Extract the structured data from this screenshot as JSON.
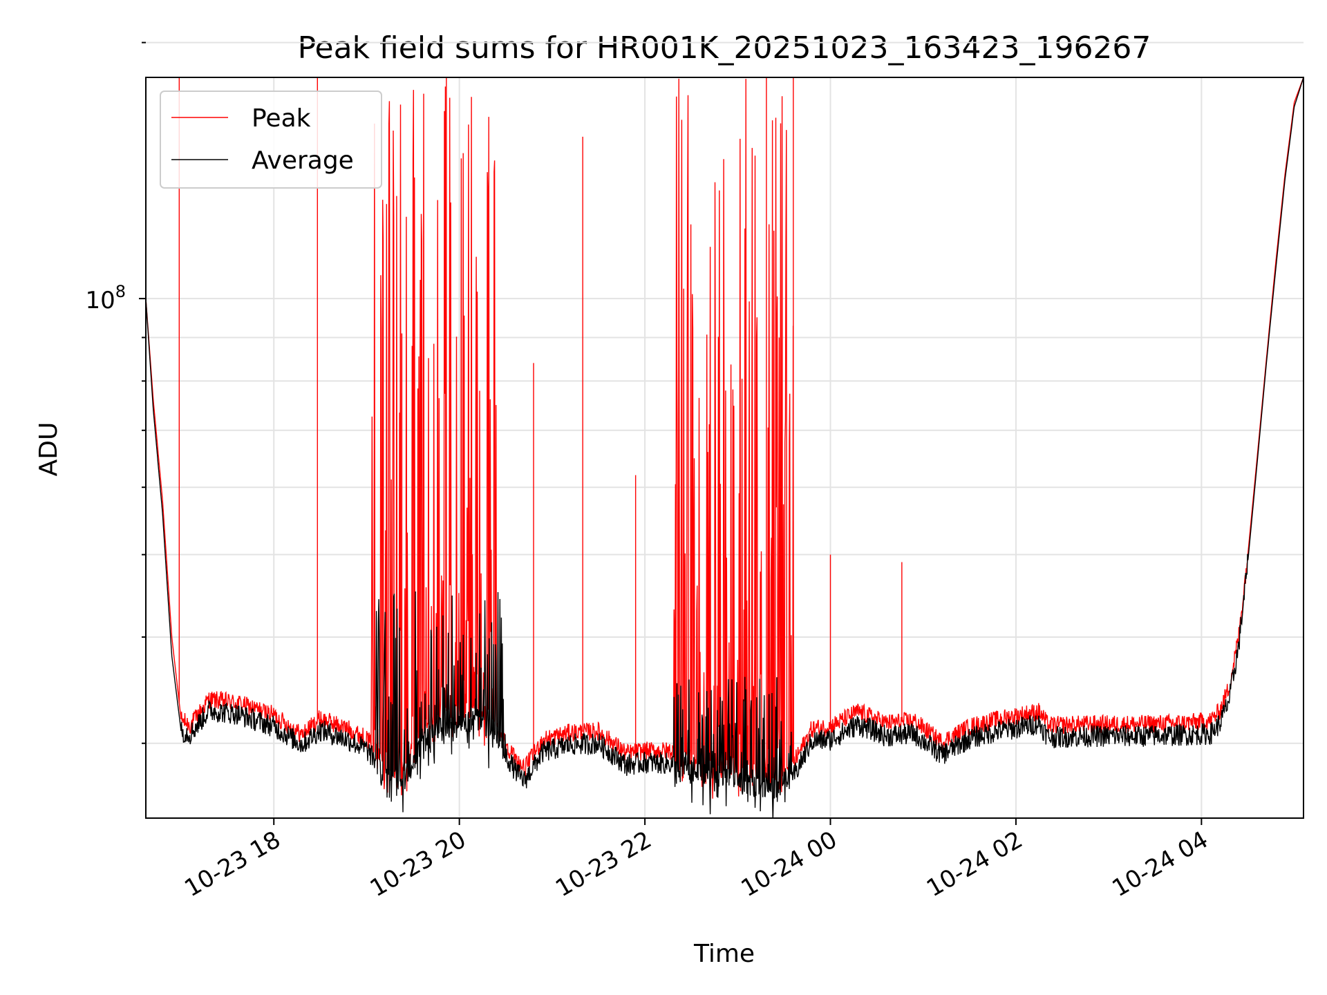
{
  "chart_data": {
    "type": "line",
    "title": "Peak field sums for HR001K_20251023_163423_196267",
    "xlabel": "Time",
    "ylabel": "ADU",
    "yscale": "log",
    "y_major_tick": {
      "value": 100000000,
      "label_base": "10",
      "label_exp": "8"
    },
    "y_minor_ticks": [
      30000000,
      40000000,
      50000000,
      60000000,
      70000000,
      80000000,
      90000000,
      200000000
    ],
    "ylim": [
      24500000,
      182000000
    ],
    "xlim_hours": [
      16.62,
      29.1
    ],
    "x_ticks": [
      {
        "hour": 18,
        "label": "10-23 18"
      },
      {
        "hour": 20,
        "label": "10-23 20"
      },
      {
        "hour": 22,
        "label": "10-23 22"
      },
      {
        "hour": 24,
        "label": "10-24 00"
      },
      {
        "hour": 26,
        "label": "10-24 02"
      },
      {
        "hour": 28,
        "label": "10-24 04"
      }
    ],
    "grid": true,
    "legend": {
      "position": "top-left",
      "entries": [
        "Peak",
        "Average"
      ]
    },
    "series": [
      {
        "name": "Peak",
        "color": "#ff0000",
        "x_hours": [
          16.62,
          16.7,
          16.8,
          16.9,
          17.0,
          17.1,
          17.3,
          17.6,
          18.0,
          18.3,
          18.5,
          18.8,
          19.0,
          19.2,
          19.4,
          19.6,
          19.8,
          20.0,
          20.2,
          20.4,
          20.6,
          20.7,
          20.9,
          21.2,
          21.5,
          21.8,
          22.0,
          22.3,
          22.6,
          22.8,
          23.0,
          23.2,
          23.4,
          23.6,
          23.8,
          24.0,
          24.3,
          24.6,
          24.9,
          25.2,
          25.5,
          25.8,
          26.1,
          26.25,
          26.35,
          26.8,
          27.3,
          27.8,
          28.1,
          28.2,
          28.3,
          28.4,
          28.5,
          28.6,
          28.7,
          28.8,
          28.9,
          29.0,
          29.1
        ],
        "values": [
          100000000,
          76000000,
          58000000,
          40000000,
          32000000,
          31500000,
          33800000,
          33500000,
          32400000,
          30700000,
          32100000,
          31200000,
          30400000,
          28600000,
          28000000,
          31200000,
          32700000,
          32800000,
          33200000,
          31300000,
          28800000,
          28000000,
          30300000,
          30900000,
          31000000,
          29200000,
          29400000,
          29400000,
          28600000,
          28100000,
          28300000,
          27800000,
          27600000,
          28400000,
          31200000,
          31400000,
          32700000,
          31700000,
          31900000,
          30100000,
          31400000,
          32000000,
          32500000,
          32700000,
          31500000,
          31600000,
          31600000,
          31700000,
          31900000,
          32800000,
          35000000,
          40000000,
          50000000,
          65000000,
          85000000,
          110000000,
          140000000,
          170000000,
          182000000
        ],
        "spikes": [
          {
            "hour": 16.98,
            "value": 182000000
          },
          {
            "hour": 18.47,
            "value": 182000000
          },
          {
            "hour": 19.38,
            "value": 91000000
          },
          {
            "hour": 19.86,
            "value": 182000000
          },
          {
            "hour": 20.8,
            "value": 84000000
          },
          {
            "hour": 21.33,
            "value": 155000000
          },
          {
            "hour": 21.9,
            "value": 62000000
          },
          {
            "hour": 23.31,
            "value": 182000000
          },
          {
            "hour": 23.6,
            "value": 182000000
          },
          {
            "hour": 24.0,
            "value": 50000000
          },
          {
            "hour": 24.77,
            "value": 49000000
          }
        ],
        "bursts": [
          {
            "start_hour": 19.05,
            "end_hour": 20.4,
            "max_value": 182000000
          },
          {
            "start_hour": 22.3,
            "end_hour": 23.6,
            "max_value": 182000000
          }
        ]
      },
      {
        "name": "Average",
        "color": "#000000",
        "x_hours": [
          16.62,
          16.7,
          16.8,
          16.9,
          17.0,
          17.1,
          17.3,
          17.6,
          18.0,
          18.3,
          18.5,
          18.8,
          19.0,
          19.2,
          19.4,
          19.6,
          19.8,
          20.0,
          20.2,
          20.4,
          20.6,
          20.7,
          20.9,
          21.2,
          21.5,
          21.8,
          22.0,
          22.3,
          22.6,
          22.8,
          23.0,
          23.2,
          23.4,
          23.6,
          23.8,
          24.0,
          24.3,
          24.6,
          24.9,
          25.2,
          25.5,
          25.8,
          26.1,
          26.25,
          26.35,
          26.8,
          27.3,
          27.8,
          28.1,
          28.2,
          28.3,
          28.4,
          28.5,
          28.6,
          28.7,
          28.8,
          28.9,
          29.0,
          29.1
        ],
        "values": [
          100000000,
          74000000,
          56000000,
          38000000,
          31000000,
          30800000,
          32800000,
          32500000,
          31400000,
          29900000,
          31100000,
          30300000,
          29500000,
          27600000,
          27000000,
          30000000,
          31500000,
          31500000,
          32000000,
          30300000,
          27900000,
          27100000,
          29300000,
          29900000,
          30000000,
          28300000,
          28500000,
          28400000,
          27700000,
          27100000,
          27300000,
          26800000,
          26600000,
          27400000,
          30200000,
          30300000,
          31600000,
          30600000,
          30800000,
          29100000,
          30400000,
          31000000,
          31400000,
          31700000,
          30500000,
          30600000,
          30600000,
          30700000,
          30800000,
          31700000,
          33800000,
          39000000,
          49000000,
          64000000,
          84000000,
          108000000,
          138000000,
          168000000,
          182000000
        ],
        "bursts": [
          {
            "start_hour": 19.1,
            "end_hour": 20.5,
            "max_value": 46000000
          },
          {
            "start_hour": 22.3,
            "end_hour": 23.6,
            "max_value": 36000000
          }
        ]
      }
    ]
  }
}
